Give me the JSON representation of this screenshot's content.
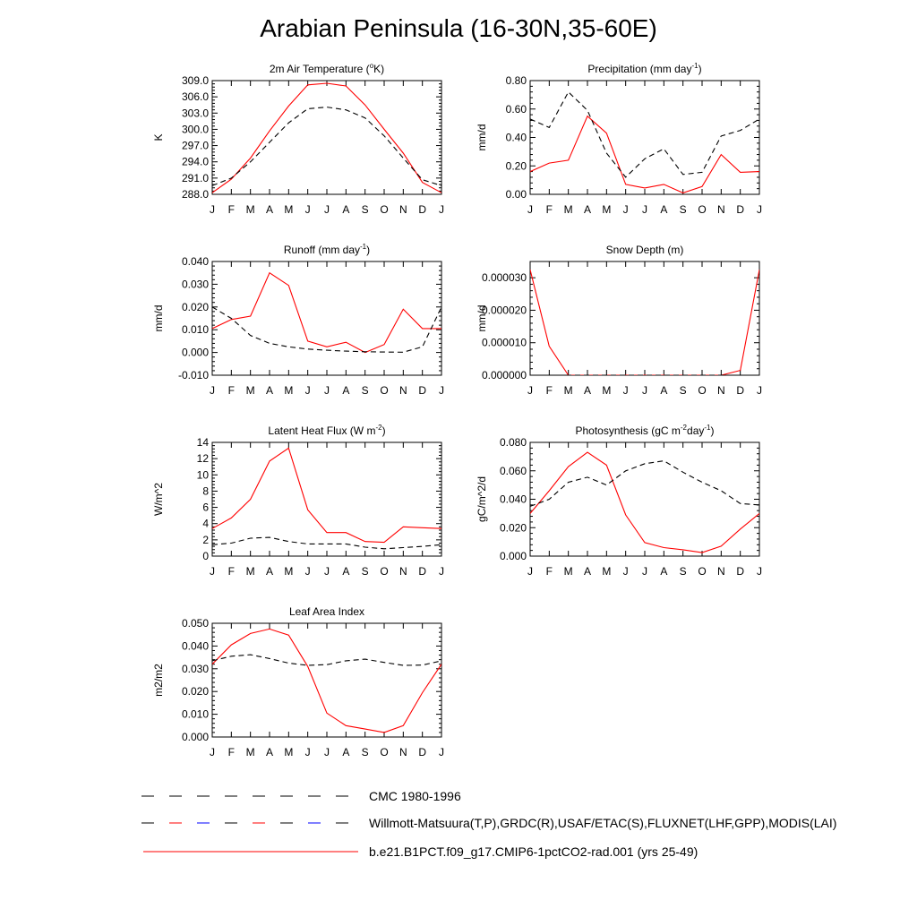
{
  "page": {
    "title": "Arabian Peninsula (16-30N,35-60E)"
  },
  "months": [
    "J",
    "F",
    "M",
    "A",
    "M",
    "J",
    "J",
    "A",
    "S",
    "O",
    "N",
    "D",
    "J"
  ],
  "legend": [
    {
      "label": "CMC 1980-1996",
      "style": "dash-black",
      "color": "#000000"
    },
    {
      "label": "Willmott-Matsuura(T,P),GRDC(R),USAF/ETAC(S),FLUXNET(LHF,GPP),MODIS(LAI)",
      "style": "dash-multicolor",
      "color": "#000000"
    },
    {
      "label": "b.e21.B1PCT.f09_g17.CMIP6-1pctCO2-rad.001 (yrs 25-49)",
      "style": "solid-red",
      "color": "#ff0000"
    }
  ],
  "colors": {
    "model": "#ff0000",
    "obs": "#000000"
  },
  "chart_data": [
    {
      "type": "line",
      "title": "2m Air Temperature (",
      "title_sup": "o",
      "title_suffix": "K)",
      "ylabel": "K",
      "ylim": [
        288.0,
        309.0
      ],
      "yticks": [
        "288.0",
        "291.0",
        "294.0",
        "297.0",
        "300.0",
        "303.0",
        "306.0",
        "309.0"
      ],
      "ytick_values": [
        288,
        291,
        294,
        297,
        300,
        303,
        306,
        309
      ],
      "categories": [
        "J",
        "F",
        "M",
        "A",
        "M",
        "J",
        "J",
        "A",
        "S",
        "O",
        "N",
        "D",
        "J"
      ],
      "series": [
        {
          "name": "b.e21.B1PCT.f09_g17.CMIP6-1pctCO2-rad.001 (yrs 25-49)",
          "style": "solid",
          "values": [
            288.3,
            290.8,
            294.7,
            299.7,
            304.3,
            308.2,
            308.5,
            308.0,
            304.5,
            300.0,
            295.6,
            290.2,
            288.3
          ]
        },
        {
          "name": "CMC 1980-1996",
          "style": "dash",
          "values": [
            289.6,
            291.0,
            294.0,
            297.6,
            301.2,
            303.8,
            304.1,
            303.6,
            302.1,
            298.8,
            294.7,
            290.7,
            289.6
          ]
        }
      ]
    },
    {
      "type": "line",
      "title": "Precipitation (mm day",
      "title_sup": "-1",
      "title_suffix": ")",
      "ylabel": "mm/d",
      "ylim": [
        0.0,
        0.8
      ],
      "yticks": [
        "0.00",
        "0.20",
        "0.40",
        "0.60",
        "0.80"
      ],
      "ytick_values": [
        0,
        0.2,
        0.4,
        0.6,
        0.8
      ],
      "categories": [
        "J",
        "F",
        "M",
        "A",
        "M",
        "J",
        "J",
        "A",
        "S",
        "O",
        "N",
        "D",
        "J"
      ],
      "series": [
        {
          "name": "b.e21.B1PCT.f09_g17.CMIP6-1pctCO2-rad.001 (yrs 25-49)",
          "style": "solid",
          "values": [
            0.16,
            0.22,
            0.24,
            0.55,
            0.43,
            0.07,
            0.045,
            0.07,
            0.01,
            0.055,
            0.28,
            0.155,
            0.16
          ]
        },
        {
          "name": "Willmott-Matsuura",
          "style": "dash",
          "values": [
            0.53,
            0.47,
            0.72,
            0.59,
            0.29,
            0.12,
            0.25,
            0.32,
            0.14,
            0.155,
            0.41,
            0.45,
            0.53
          ]
        }
      ]
    },
    {
      "type": "line",
      "title": "Runoff (mm day",
      "title_sup": "-1",
      "title_suffix": ")",
      "ylabel": "mm/d",
      "ylim": [
        -0.01,
        0.04
      ],
      "yticks": [
        "-0.010",
        "0.000",
        "0.010",
        "0.020",
        "0.030",
        "0.040"
      ],
      "ytick_values": [
        -0.01,
        0,
        0.01,
        0.02,
        0.03,
        0.04
      ],
      "categories": [
        "J",
        "F",
        "M",
        "A",
        "M",
        "J",
        "J",
        "A",
        "S",
        "O",
        "N",
        "D",
        "J"
      ],
      "series": [
        {
          "name": "b.e21.B1PCT.f09_g17.CMIP6-1pctCO2-rad.001 (yrs 25-49)",
          "style": "solid",
          "values": [
            0.0105,
            0.0145,
            0.016,
            0.035,
            0.0295,
            0.005,
            0.0025,
            0.0045,
            0.0,
            0.0035,
            0.019,
            0.0105,
            0.0105
          ]
        },
        {
          "name": "GRDC",
          "style": "dash",
          "values": [
            0.02,
            0.015,
            0.0075,
            0.004,
            0.0025,
            0.0015,
            0.001,
            0.0006,
            0.0003,
            0.0002,
            0.0001,
            0.0025,
            0.02
          ]
        }
      ]
    },
    {
      "type": "line",
      "title": "Snow Depth (m)",
      "title_sup": "",
      "title_suffix": "",
      "ylabel": "mm/d",
      "ylim": [
        0.0,
        3.5e-05
      ],
      "yticks": [
        "0.000000",
        "0.000010",
        "0.000020",
        "0.000030"
      ],
      "ytick_values": [
        0,
        1e-05,
        2e-05,
        3e-05
      ],
      "categories": [
        "J",
        "F",
        "M",
        "A",
        "M",
        "J",
        "J",
        "A",
        "S",
        "O",
        "N",
        "D",
        "J"
      ],
      "series": [
        {
          "name": "b.e21.B1PCT.f09_g17.CMIP6-1pctCO2-rad.001 (yrs 25-49)",
          "style": "solid",
          "values": [
            3.25e-05,
            8.9e-06,
            0.0,
            0.0,
            0.0,
            0.0,
            0.0,
            0.0,
            0.0,
            0.0,
            0.0,
            1.5e-06,
            3.25e-05
          ]
        },
        {
          "name": "CMC 1980-1996",
          "style": "dash",
          "values": [
            0,
            0,
            0,
            0,
            0,
            0,
            0,
            0,
            0,
            0,
            0,
            0,
            0
          ]
        }
      ]
    },
    {
      "type": "line",
      "title": "Latent Heat Flux (W m",
      "title_sup": "-2",
      "title_suffix": ")",
      "ylabel": "W/m^2",
      "ylim": [
        0,
        14
      ],
      "yticks": [
        "0",
        "2",
        "4",
        "6",
        "8",
        "10",
        "12",
        "14"
      ],
      "ytick_values": [
        0,
        2,
        4,
        6,
        8,
        10,
        12,
        14
      ],
      "categories": [
        "J",
        "F",
        "M",
        "A",
        "M",
        "J",
        "J",
        "A",
        "S",
        "O",
        "N",
        "D",
        "J"
      ],
      "series": [
        {
          "name": "b.e21.B1PCT.f09_g17.CMIP6-1pctCO2-rad.001 (yrs 25-49)",
          "style": "solid",
          "values": [
            3.4,
            4.7,
            7.0,
            11.7,
            13.3,
            5.7,
            2.9,
            2.9,
            1.8,
            1.7,
            3.6,
            3.5,
            3.4
          ]
        },
        {
          "name": "FLUXNET",
          "style": "dash",
          "values": [
            1.4,
            1.6,
            2.2,
            2.3,
            1.8,
            1.5,
            1.5,
            1.5,
            1.1,
            0.9,
            1.05,
            1.2,
            1.4
          ]
        }
      ]
    },
    {
      "type": "line",
      "title": "Photosynthesis (gC m",
      "title_sup": "-2",
      "title_mid": "day",
      "title_sup2": "-1",
      "title_suffix": ")",
      "ylabel": "gC/m^2/d",
      "ylim": [
        0.0,
        0.08
      ],
      "yticks": [
        "0.000",
        "0.020",
        "0.040",
        "0.060",
        "0.080"
      ],
      "ytick_values": [
        0,
        0.02,
        0.04,
        0.06,
        0.08
      ],
      "categories": [
        "J",
        "F",
        "M",
        "A",
        "M",
        "J",
        "J",
        "A",
        "S",
        "O",
        "N",
        "D",
        "J"
      ],
      "series": [
        {
          "name": "b.e21.B1PCT.f09_g17.CMIP6-1pctCO2-rad.001 (yrs 25-49)",
          "style": "solid",
          "values": [
            0.03,
            0.046,
            0.063,
            0.073,
            0.064,
            0.029,
            0.0095,
            0.006,
            0.0045,
            0.0025,
            0.007,
            0.019,
            0.03
          ]
        },
        {
          "name": "FLUXNET",
          "style": "dash",
          "values": [
            0.035,
            0.04,
            0.052,
            0.0555,
            0.05,
            0.06,
            0.065,
            0.067,
            0.059,
            0.052,
            0.046,
            0.037,
            0.036
          ]
        }
      ]
    },
    {
      "type": "line",
      "title": "Leaf Area Index",
      "title_sup": "",
      "title_suffix": "",
      "ylabel": "m2/m2",
      "ylim": [
        0.0,
        0.05
      ],
      "yticks": [
        "0.000",
        "0.010",
        "0.020",
        "0.030",
        "0.040",
        "0.050"
      ],
      "ytick_values": [
        0,
        0.01,
        0.02,
        0.03,
        0.04,
        0.05
      ],
      "categories": [
        "J",
        "F",
        "M",
        "A",
        "M",
        "J",
        "J",
        "A",
        "S",
        "O",
        "N",
        "D",
        "J"
      ],
      "series": [
        {
          "name": "b.e21.B1PCT.f09_g17.CMIP6-1pctCO2-rad.001 (yrs 25-49)",
          "style": "solid",
          "values": [
            0.032,
            0.0405,
            0.0455,
            0.0475,
            0.0448,
            0.031,
            0.0105,
            0.005,
            0.0035,
            0.002,
            0.005,
            0.0195,
            0.032
          ]
        },
        {
          "name": "MODIS",
          "style": "dash",
          "values": [
            0.0335,
            0.0355,
            0.0362,
            0.0345,
            0.0325,
            0.0315,
            0.0318,
            0.0335,
            0.0342,
            0.0328,
            0.0315,
            0.0316,
            0.0335
          ]
        }
      ]
    }
  ]
}
